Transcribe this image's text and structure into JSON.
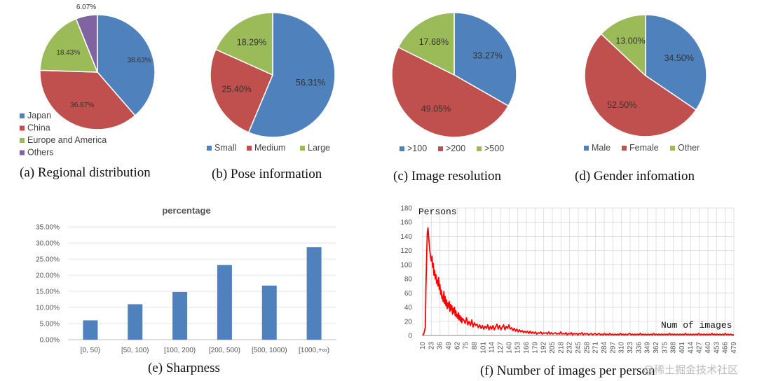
{
  "chart_data": [
    {
      "type": "pie",
      "caption": "(a) Regional distribution",
      "labels": [
        "Japan",
        "China",
        "Europe and America",
        "Others"
      ],
      "values": [
        38.63,
        36.87,
        18.43,
        6.07
      ],
      "value_labels": [
        "38.63%",
        "36.87%",
        "18.43%",
        "6.07%"
      ],
      "colors": [
        "#4f81bd",
        "#c0504d",
        "#9bbb59",
        "#8064a2"
      ],
      "legend": "bottom-left vertical"
    },
    {
      "type": "pie",
      "caption": "(b) Pose information",
      "labels": [
        "Small",
        "Medium",
        "Large"
      ],
      "values": [
        56.31,
        25.4,
        18.29
      ],
      "value_labels": [
        "56.31%",
        "25.40%",
        "18.29%"
      ],
      "colors": [
        "#4f81bd",
        "#c0504d",
        "#9bbb59"
      ],
      "legend": "bottom"
    },
    {
      "type": "pie",
      "caption": "(c) Image resolution",
      "labels": [
        ">100",
        ">200",
        ">500"
      ],
      "values": [
        33.27,
        49.05,
        17.68
      ],
      "value_labels": [
        "33.27%",
        "49.05%",
        "17.68%"
      ],
      "colors": [
        "#4f81bd",
        "#c0504d",
        "#9bbb59"
      ],
      "legend": "bottom"
    },
    {
      "type": "pie",
      "caption": "(d) Gender infomation",
      "labels": [
        "Male",
        "Female",
        "Other"
      ],
      "values": [
        34.5,
        52.5,
        13.0
      ],
      "value_labels": [
        "34.50%",
        "52.50%",
        "13.00%"
      ],
      "colors": [
        "#4f81bd",
        "#c0504d",
        "#9bbb59"
      ],
      "legend": "bottom"
    },
    {
      "type": "bar",
      "caption": "(e) Sharpness",
      "title": "percentage",
      "categories": [
        "[0, 50)",
        "[50, 100)",
        "[100, 200)",
        "[200, 500)",
        "[500, 1000)",
        "[1000,+∞)"
      ],
      "values": [
        6.0,
        11.0,
        14.8,
        23.2,
        16.8,
        28.7
      ],
      "ylim": [
        0,
        35
      ],
      "yticks": [
        "0.00%",
        "5.00%",
        "10.00%",
        "15.00%",
        "20.00%",
        "25.00%",
        "30.00%",
        "35.00%"
      ],
      "color": "#4f81bd",
      "grid": true
    },
    {
      "type": "line",
      "caption": "(f) Number of images per person",
      "ylabel": "Persons",
      "xlabel": "Num of images",
      "ylim": [
        0,
        180
      ],
      "yticks": [
        "0",
        "20",
        "40",
        "60",
        "80",
        "100",
        "120",
        "140",
        "160",
        "180"
      ],
      "xticks": [
        "10",
        "23",
        "36",
        "49",
        "62",
        "75",
        "88",
        "101",
        "114",
        "127",
        "140",
        "153",
        "166",
        "179",
        "192",
        "205",
        "218",
        "232",
        "245",
        "258",
        "271",
        "284",
        "297",
        "310",
        "323",
        "336",
        "349",
        "362",
        "375",
        "388",
        "401",
        "414",
        "427",
        "440",
        "453",
        "466",
        "479"
      ],
      "xlim": [
        10,
        479
      ],
      "color": "#ff0000",
      "grid": true,
      "points": [
        [
          10,
          0
        ],
        [
          12,
          3
        ],
        [
          14,
          12
        ],
        [
          15,
          70
        ],
        [
          16,
          110
        ],
        [
          17,
          145
        ],
        [
          18,
          152
        ],
        [
          19,
          140
        ],
        [
          20,
          128
        ],
        [
          21,
          118
        ],
        [
          22,
          110
        ],
        [
          23,
          105
        ],
        [
          24,
          112
        ],
        [
          25,
          96
        ],
        [
          26,
          102
        ],
        [
          27,
          85
        ],
        [
          28,
          92
        ],
        [
          29,
          80
        ],
        [
          30,
          86
        ],
        [
          31,
          74
        ],
        [
          32,
          78
        ],
        [
          33,
          70
        ],
        [
          34,
          82
        ],
        [
          35,
          65
        ],
        [
          36,
          72
        ],
        [
          37,
          58
        ],
        [
          38,
          64
        ],
        [
          39,
          52
        ],
        [
          40,
          56
        ],
        [
          41,
          48
        ],
        [
          42,
          62
        ],
        [
          43,
          45
        ],
        [
          44,
          55
        ],
        [
          45,
          42
        ],
        [
          46,
          50
        ],
        [
          47,
          38
        ],
        [
          48,
          46
        ],
        [
          49,
          40
        ],
        [
          50,
          48
        ],
        [
          51,
          34
        ],
        [
          52,
          44
        ],
        [
          53,
          36
        ],
        [
          54,
          42
        ],
        [
          55,
          30
        ],
        [
          56,
          38
        ],
        [
          57,
          32
        ],
        [
          58,
          40
        ],
        [
          59,
          28
        ],
        [
          60,
          35
        ],
        [
          61,
          26
        ],
        [
          62,
          30
        ],
        [
          63,
          24
        ],
        [
          64,
          32
        ],
        [
          65,
          22
        ],
        [
          66,
          28
        ],
        [
          67,
          20
        ],
        [
          68,
          26
        ],
        [
          69,
          18
        ],
        [
          70,
          24
        ],
        [
          72,
          22
        ],
        [
          74,
          17
        ],
        [
          76,
          25
        ],
        [
          78,
          15
        ],
        [
          80,
          20
        ],
        [
          82,
          14
        ],
        [
          84,
          22
        ],
        [
          86,
          12
        ],
        [
          88,
          18
        ],
        [
          90,
          14
        ],
        [
          92,
          16
        ],
        [
          94,
          11
        ],
        [
          96,
          15
        ],
        [
          98,
          10
        ],
        [
          100,
          14
        ],
        [
          102,
          9
        ],
        [
          104,
          13
        ],
        [
          106,
          10
        ],
        [
          108,
          15
        ],
        [
          110,
          8
        ],
        [
          112,
          13
        ],
        [
          114,
          9
        ],
        [
          116,
          14
        ],
        [
          118,
          8
        ],
        [
          120,
          12
        ],
        [
          122,
          16
        ],
        [
          124,
          9
        ],
        [
          126,
          14
        ],
        [
          128,
          8
        ],
        [
          130,
          12
        ],
        [
          132,
          15
        ],
        [
          134,
          8
        ],
        [
          136,
          13
        ],
        [
          138,
          10
        ],
        [
          140,
          15
        ],
        [
          142,
          9
        ],
        [
          144,
          11
        ],
        [
          146,
          7
        ],
        [
          148,
          10
        ],
        [
          150,
          6
        ],
        [
          152,
          9
        ],
        [
          154,
          5
        ],
        [
          156,
          8
        ],
        [
          158,
          5
        ],
        [
          160,
          7
        ],
        [
          162,
          4
        ],
        [
          164,
          6
        ],
        [
          166,
          4
        ],
        [
          168,
          6
        ],
        [
          170,
          3
        ],
        [
          172,
          6
        ],
        [
          174,
          3
        ],
        [
          176,
          5
        ],
        [
          178,
          3
        ],
        [
          180,
          5
        ],
        [
          182,
          2
        ],
        [
          184,
          4
        ],
        [
          186,
          3
        ],
        [
          188,
          5
        ],
        [
          190,
          2
        ],
        [
          192,
          4
        ],
        [
          194,
          3
        ],
        [
          196,
          4
        ],
        [
          198,
          2
        ],
        [
          200,
          5
        ],
        [
          202,
          2
        ],
        [
          204,
          4
        ],
        [
          206,
          2
        ],
        [
          208,
          3
        ],
        [
          210,
          4
        ],
        [
          212,
          2
        ],
        [
          214,
          3
        ],
        [
          216,
          2
        ],
        [
          218,
          5
        ],
        [
          220,
          2
        ],
        [
          222,
          3
        ],
        [
          224,
          2
        ],
        [
          226,
          4
        ],
        [
          228,
          1
        ],
        [
          230,
          3
        ],
        [
          232,
          2
        ],
        [
          234,
          4
        ],
        [
          236,
          1
        ],
        [
          238,
          3
        ],
        [
          240,
          2
        ],
        [
          242,
          3
        ],
        [
          244,
          1
        ],
        [
          246,
          3
        ],
        [
          248,
          2
        ],
        [
          250,
          4
        ],
        [
          252,
          1
        ],
        [
          254,
          3
        ],
        [
          256,
          2
        ],
        [
          258,
          3
        ],
        [
          260,
          1
        ],
        [
          262,
          2
        ],
        [
          264,
          3
        ],
        [
          266,
          1
        ],
        [
          268,
          2
        ],
        [
          270,
          3
        ],
        [
          272,
          1
        ],
        [
          274,
          2
        ],
        [
          276,
          3
        ],
        [
          278,
          1
        ],
        [
          280,
          2
        ],
        [
          282,
          1
        ],
        [
          284,
          3
        ],
        [
          286,
          1
        ],
        [
          288,
          2
        ],
        [
          290,
          1
        ],
        [
          292,
          3
        ],
        [
          294,
          1
        ],
        [
          296,
          2
        ],
        [
          298,
          1
        ],
        [
          300,
          2
        ],
        [
          302,
          1
        ],
        [
          304,
          2
        ],
        [
          306,
          1
        ],
        [
          308,
          3
        ],
        [
          310,
          1
        ],
        [
          312,
          2
        ],
        [
          314,
          1
        ],
        [
          316,
          2
        ],
        [
          318,
          1
        ],
        [
          320,
          2
        ],
        [
          322,
          3
        ],
        [
          324,
          1
        ],
        [
          326,
          2
        ],
        [
          328,
          1
        ],
        [
          330,
          2
        ],
        [
          332,
          1
        ],
        [
          334,
          2
        ],
        [
          336,
          1
        ],
        [
          338,
          3
        ],
        [
          340,
          1
        ],
        [
          342,
          2
        ],
        [
          344,
          1
        ],
        [
          346,
          2
        ],
        [
          348,
          1
        ],
        [
          350,
          2
        ],
        [
          352,
          1
        ],
        [
          354,
          2
        ],
        [
          356,
          1
        ],
        [
          358,
          3
        ],
        [
          360,
          1
        ],
        [
          362,
          2
        ],
        [
          364,
          1
        ],
        [
          366,
          2
        ],
        [
          368,
          1
        ],
        [
          370,
          2
        ],
        [
          372,
          1
        ],
        [
          374,
          2
        ],
        [
          376,
          1
        ],
        [
          378,
          2
        ],
        [
          380,
          1
        ],
        [
          382,
          3
        ],
        [
          384,
          1
        ],
        [
          386,
          2
        ],
        [
          388,
          1
        ],
        [
          390,
          2
        ],
        [
          392,
          1
        ],
        [
          394,
          2
        ],
        [
          396,
          1
        ],
        [
          398,
          2
        ],
        [
          400,
          1
        ],
        [
          402,
          2
        ],
        [
          404,
          1
        ],
        [
          406,
          3
        ],
        [
          408,
          1
        ],
        [
          410,
          2
        ],
        [
          412,
          1
        ],
        [
          414,
          2
        ],
        [
          416,
          1
        ],
        [
          418,
          2
        ],
        [
          420,
          1
        ],
        [
          422,
          2
        ],
        [
          424,
          1
        ],
        [
          426,
          3
        ],
        [
          428,
          1
        ],
        [
          430,
          2
        ],
        [
          432,
          1
        ],
        [
          434,
          2
        ],
        [
          436,
          1
        ],
        [
          438,
          2
        ],
        [
          440,
          1
        ],
        [
          442,
          2
        ],
        [
          444,
          1
        ],
        [
          446,
          3
        ],
        [
          448,
          1
        ],
        [
          450,
          2
        ],
        [
          452,
          1
        ],
        [
          454,
          2
        ],
        [
          456,
          1
        ],
        [
          458,
          2
        ],
        [
          460,
          1
        ],
        [
          462,
          2
        ],
        [
          464,
          1
        ],
        [
          466,
          3
        ],
        [
          468,
          1
        ],
        [
          470,
          2
        ],
        [
          472,
          1
        ],
        [
          474,
          2
        ],
        [
          476,
          1
        ],
        [
          479,
          1
        ]
      ]
    }
  ],
  "watermark": "@稀土掘金技术社区"
}
